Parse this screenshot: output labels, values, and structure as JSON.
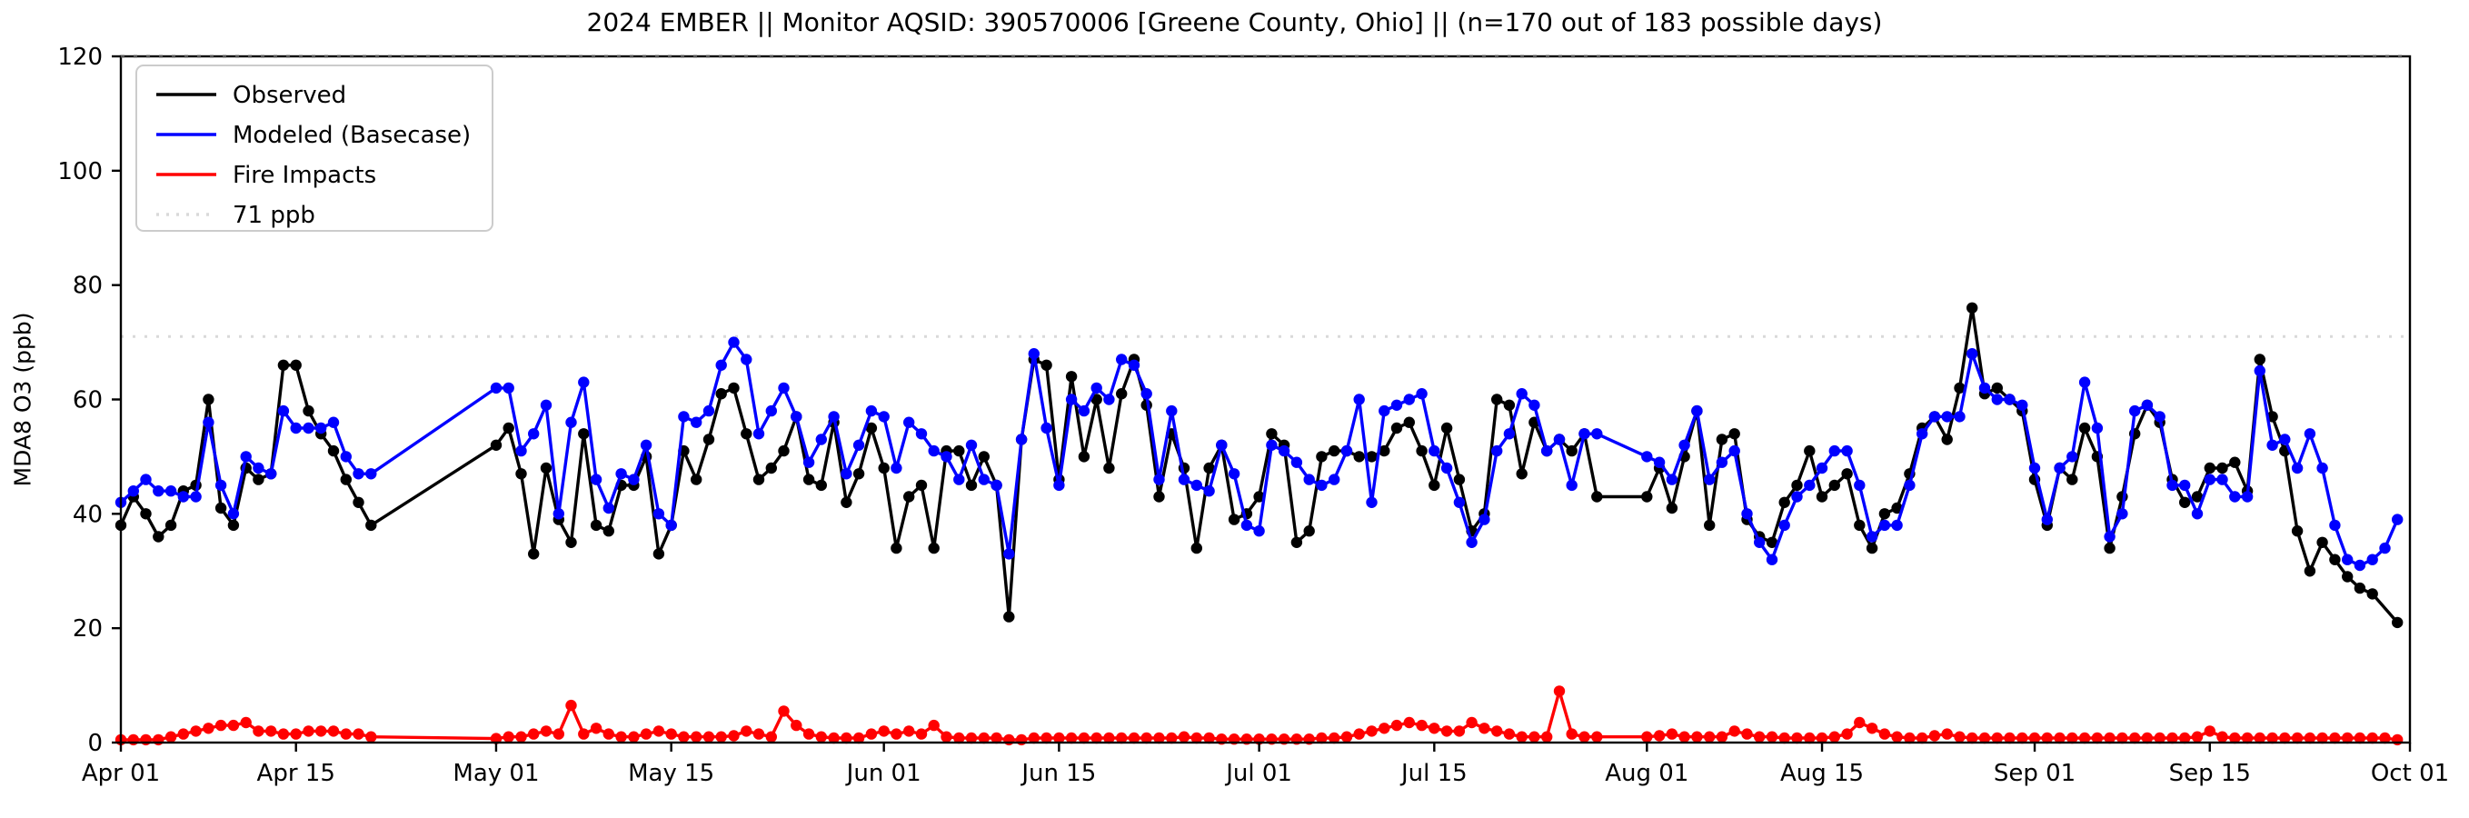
{
  "chart_data": {
    "type": "line",
    "title": "2024 EMBER || Monitor AQSID: 390570006 [Greene County, Ohio] || (n=170 out of 183 possible days)",
    "ylabel": "MDA8 O3 (ppb)",
    "ylim": [
      0,
      120
    ],
    "yticks": [
      0,
      20,
      40,
      60,
      80,
      100,
      120
    ],
    "x_total_days": 183,
    "x_start_date": "Apr 01",
    "x_end_date": "Oct 01",
    "xticks": [
      {
        "day": 0,
        "label": "Apr 01"
      },
      {
        "day": 14,
        "label": "Apr 15"
      },
      {
        "day": 30,
        "label": "May 01"
      },
      {
        "day": 44,
        "label": "May 15"
      },
      {
        "day": 61,
        "label": "Jun 01"
      },
      {
        "day": 75,
        "label": "Jun 15"
      },
      {
        "day": 91,
        "label": "Jul 01"
      },
      {
        "day": 105,
        "label": "Jul 15"
      },
      {
        "day": 122,
        "label": "Aug 01"
      },
      {
        "day": 136,
        "label": "Aug 15"
      },
      {
        "day": 153,
        "label": "Sep 01"
      },
      {
        "day": 167,
        "label": "Sep 15"
      },
      {
        "day": 183,
        "label": "Oct 01"
      }
    ],
    "threshold": {
      "value": 71,
      "label": "71 ppb",
      "color": "#d9d9d9",
      "style": "dotted"
    },
    "top_dotted_line": {
      "value": 120,
      "color": "#555555",
      "style": "dotted"
    },
    "grid": false,
    "legend_position": "upper-left",
    "missing_days_note": "gaps Apr 22-30 and Jul 29-31 connected by straight lines (no markers)",
    "series": [
      {
        "name": "Observed",
        "color": "#000000",
        "values": [
          38,
          43,
          40,
          36,
          38,
          44,
          45,
          60,
          41,
          38,
          48,
          46,
          47,
          66,
          66,
          58,
          54,
          51,
          46,
          42,
          38,
          null,
          null,
          null,
          null,
          null,
          null,
          null,
          null,
          null,
          52,
          55,
          47,
          33,
          48,
          39,
          35,
          54,
          38,
          37,
          45,
          45,
          50,
          33,
          38,
          51,
          46,
          53,
          61,
          62,
          54,
          46,
          48,
          51,
          57,
          46,
          45,
          56,
          42,
          47,
          55,
          48,
          34,
          43,
          45,
          34,
          51,
          51,
          45,
          50,
          45,
          22,
          53,
          67,
          66,
          46,
          64,
          50,
          60,
          48,
          61,
          67,
          59,
          43,
          54,
          48,
          34,
          48,
          52,
          39,
          40,
          43,
          54,
          52,
          35,
          37,
          50,
          51,
          51,
          50,
          50,
          51,
          55,
          56,
          51,
          45,
          55,
          46,
          37,
          40,
          60,
          59,
          47,
          56,
          51,
          53,
          51,
          54,
          43,
          null,
          null,
          null,
          43,
          48,
          41,
          50,
          58,
          38,
          53,
          54,
          39,
          36,
          35,
          42,
          45,
          51,
          43,
          45,
          47,
          38,
          34,
          40,
          41,
          47,
          55,
          57,
          53,
          62,
          76,
          61,
          62,
          60,
          58,
          46,
          38,
          48,
          46,
          55,
          50,
          34,
          43,
          54,
          59,
          56,
          46,
          42,
          43,
          48,
          48,
          49,
          44,
          67,
          57,
          51,
          37,
          30,
          35,
          32,
          29,
          27,
          26,
          null,
          21
        ]
      },
      {
        "name": "Modeled (Basecase)",
        "color": "#0000ff",
        "values": [
          42,
          44,
          46,
          44,
          44,
          43,
          43,
          56,
          45,
          40,
          50,
          48,
          47,
          58,
          55,
          55,
          55,
          56,
          50,
          47,
          47,
          null,
          null,
          null,
          null,
          null,
          null,
          null,
          null,
          null,
          62,
          62,
          51,
          54,
          59,
          40,
          56,
          63,
          46,
          41,
          47,
          46,
          52,
          40,
          38,
          57,
          56,
          58,
          66,
          70,
          67,
          54,
          58,
          62,
          57,
          49,
          53,
          57,
          47,
          52,
          58,
          57,
          48,
          56,
          54,
          51,
          50,
          46,
          52,
          46,
          45,
          33,
          53,
          68,
          55,
          45,
          60,
          58,
          62,
          60,
          67,
          66,
          61,
          46,
          58,
          46,
          45,
          44,
          52,
          47,
          38,
          37,
          52,
          51,
          49,
          46,
          45,
          46,
          51,
          60,
          42,
          58,
          59,
          60,
          61,
          51,
          48,
          42,
          35,
          39,
          51,
          54,
          61,
          59,
          51,
          53,
          45,
          54,
          54,
          null,
          null,
          null,
          50,
          49,
          46,
          52,
          58,
          46,
          49,
          51,
          40,
          35,
          32,
          38,
          43,
          45,
          48,
          51,
          51,
          45,
          36,
          38,
          38,
          45,
          54,
          57,
          57,
          57,
          68,
          62,
          60,
          60,
          59,
          48,
          39,
          48,
          50,
          63,
          55,
          36,
          40,
          58,
          59,
          57,
          45,
          45,
          40,
          46,
          46,
          43,
          43,
          65,
          52,
          53,
          48,
          54,
          48,
          38,
          32,
          31,
          32,
          34,
          39
        ]
      },
      {
        "name": "Fire Impacts",
        "color": "#ff0000",
        "values": [
          0.5,
          0.5,
          0.5,
          0.5,
          1,
          1.5,
          2,
          2.5,
          3,
          3,
          3.5,
          2,
          2,
          1.5,
          1.5,
          2,
          2,
          2,
          1.5,
          1.5,
          1,
          null,
          null,
          null,
          null,
          null,
          null,
          null,
          null,
          null,
          0.7,
          1,
          1,
          1.5,
          2,
          1.5,
          6.5,
          1.5,
          2.5,
          1.5,
          1,
          1,
          1.5,
          2,
          1.5,
          1,
          1,
          1,
          1,
          1.2,
          2,
          1.5,
          1,
          5.5,
          3,
          1.5,
          1,
          0.8,
          0.8,
          0.8,
          1.5,
          2,
          1.5,
          2,
          1.5,
          3,
          1,
          0.8,
          0.8,
          0.8,
          0.8,
          0.5,
          0.5,
          0.8,
          0.8,
          0.8,
          0.8,
          0.8,
          0.8,
          0.8,
          0.8,
          0.8,
          0.8,
          0.8,
          0.8,
          1,
          0.8,
          0.8,
          0.6,
          0.6,
          0.6,
          0.6,
          0.6,
          0.6,
          0.6,
          0.6,
          0.8,
          0.8,
          1,
          1.5,
          2,
          2.5,
          3,
          3.5,
          3,
          2.5,
          2,
          2,
          3.5,
          2.5,
          2,
          1.5,
          1,
          1,
          1,
          9,
          1.5,
          1,
          1,
          null,
          null,
          null,
          1,
          1.2,
          1.5,
          1,
          1,
          1,
          1,
          2,
          1.5,
          1,
          1,
          0.8,
          0.8,
          0.8,
          0.8,
          1,
          1.5,
          3.5,
          2.5,
          1.5,
          1,
          0.8,
          0.8,
          1.2,
          1.5,
          1,
          0.8,
          0.8,
          0.8,
          0.8,
          0.8,
          0.8,
          0.8,
          0.8,
          0.8,
          0.8,
          0.8,
          0.8,
          0.8,
          0.8,
          0.8,
          0.8,
          0.8,
          0.8,
          1,
          2,
          1,
          0.8,
          0.8,
          0.8,
          0.8,
          0.8,
          0.8,
          0.8,
          0.8,
          0.8,
          0.8,
          0.8,
          0.8,
          0.8,
          0.5
        ]
      }
    ]
  }
}
